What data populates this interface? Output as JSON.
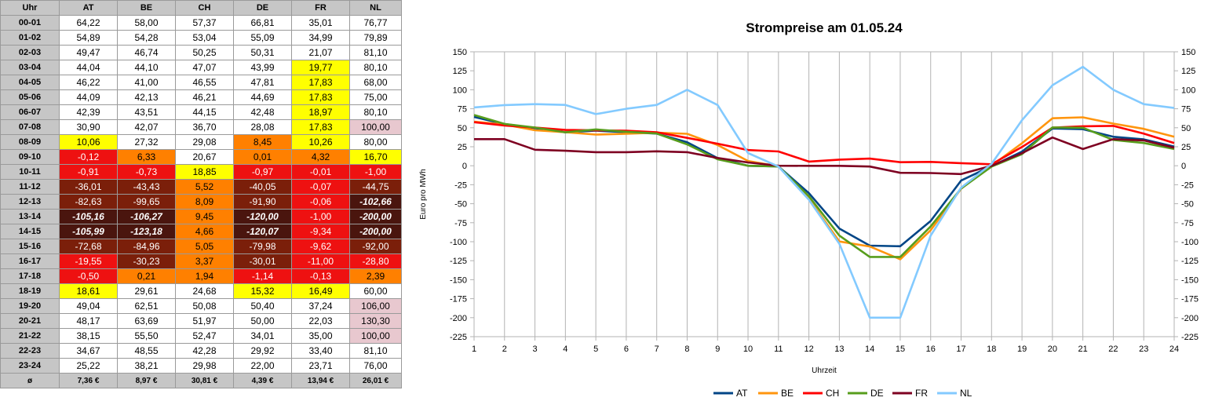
{
  "table": {
    "columns": [
      "Uhr",
      "AT",
      "BE",
      "CH",
      "DE",
      "FR",
      "NL"
    ],
    "rows": [
      {
        "hour": "00-01",
        "values": [
          "64,22",
          "58,00",
          "57,37",
          "66,81",
          "35,01",
          "76,77"
        ],
        "cls": [
          "",
          "",
          "",
          "",
          "",
          ""
        ]
      },
      {
        "hour": "01-02",
        "values": [
          "54,89",
          "54,28",
          "53,04",
          "55,09",
          "34,99",
          "79,89"
        ],
        "cls": [
          "",
          "",
          "",
          "",
          "",
          ""
        ]
      },
      {
        "hour": "02-03",
        "values": [
          "49,47",
          "46,74",
          "50,25",
          "50,31",
          "21,07",
          "81,10"
        ],
        "cls": [
          "",
          "",
          "",
          "",
          "",
          ""
        ]
      },
      {
        "hour": "03-04",
        "values": [
          "44,04",
          "44,10",
          "47,07",
          "43,99",
          "19,77",
          "80,10"
        ],
        "cls": [
          "",
          "",
          "",
          "",
          "y",
          ""
        ]
      },
      {
        "hour": "04-05",
        "values": [
          "46,22",
          "41,00",
          "46,55",
          "47,81",
          "17,83",
          "68,00"
        ],
        "cls": [
          "",
          "",
          "",
          "",
          "y",
          ""
        ]
      },
      {
        "hour": "05-06",
        "values": [
          "44,09",
          "42,13",
          "46,21",
          "44,69",
          "17,83",
          "75,00"
        ],
        "cls": [
          "",
          "",
          "",
          "",
          "y",
          ""
        ]
      },
      {
        "hour": "06-07",
        "values": [
          "42,39",
          "43,51",
          "44,15",
          "42,48",
          "18,97",
          "80,10"
        ],
        "cls": [
          "",
          "",
          "",
          "",
          "y",
          ""
        ]
      },
      {
        "hour": "07-08",
        "values": [
          "30,90",
          "42,07",
          "36,70",
          "28,08",
          "17,83",
          "100,00"
        ],
        "cls": [
          "",
          "",
          "",
          "",
          "y",
          "p"
        ]
      },
      {
        "hour": "08-09",
        "values": [
          "10,06",
          "27,32",
          "29,08",
          "8,45",
          "10,26",
          "80,00"
        ],
        "cls": [
          "y",
          "",
          "",
          "o",
          "y",
          ""
        ]
      },
      {
        "hour": "09-10",
        "values": [
          "-0,12",
          "6,33",
          "20,67",
          "0,01",
          "4,32",
          "16,70"
        ],
        "cls": [
          "r",
          "o",
          "",
          "o",
          "o",
          "y"
        ]
      },
      {
        "hour": "10-11",
        "values": [
          "-0,91",
          "-0,73",
          "18,85",
          "-0,97",
          "-0,01",
          "-1,00"
        ],
        "cls": [
          "r",
          "r",
          "y",
          "r",
          "r",
          "r"
        ]
      },
      {
        "hour": "11-12",
        "values": [
          "-36,01",
          "-43,43",
          "5,52",
          "-40,05",
          "-0,07",
          "-44,75"
        ],
        "cls": [
          "d",
          "d",
          "o",
          "d",
          "r",
          "d"
        ]
      },
      {
        "hour": "12-13",
        "values": [
          "-82,63",
          "-99,65",
          "8,09",
          "-91,90",
          "-0,06",
          "-102,66"
        ],
        "cls": [
          "d",
          "d",
          "o",
          "d",
          "r",
          "vd"
        ]
      },
      {
        "hour": "13-14",
        "values": [
          "-105,16",
          "-106,27",
          "9,45",
          "-120,00",
          "-1,00",
          "-200,00"
        ],
        "cls": [
          "vd",
          "vd",
          "o",
          "vd",
          "r",
          "vd"
        ]
      },
      {
        "hour": "14-15",
        "values": [
          "-105,99",
          "-123,18",
          "4,66",
          "-120,07",
          "-9,34",
          "-200,00"
        ],
        "cls": [
          "vd",
          "vd",
          "o",
          "vd",
          "r",
          "vd"
        ]
      },
      {
        "hour": "15-16",
        "values": [
          "-72,68",
          "-84,96",
          "5,05",
          "-79,98",
          "-9,62",
          "-92,00"
        ],
        "cls": [
          "d",
          "d",
          "o",
          "d",
          "r",
          "d"
        ]
      },
      {
        "hour": "16-17",
        "values": [
          "-19,55",
          "-30,23",
          "3,37",
          "-30,01",
          "-11,00",
          "-28,80"
        ],
        "cls": [
          "r",
          "d",
          "o",
          "d",
          "r",
          "r"
        ]
      },
      {
        "hour": "17-18",
        "values": [
          "-0,50",
          "0,21",
          "1,94",
          "-1,14",
          "-0,13",
          "2,39"
        ],
        "cls": [
          "r",
          "o",
          "o",
          "r",
          "r",
          "o"
        ]
      },
      {
        "hour": "18-19",
        "values": [
          "18,61",
          "29,61",
          "24,68",
          "15,32",
          "16,49",
          "60,00"
        ],
        "cls": [
          "y",
          "",
          "",
          "y",
          "y",
          ""
        ]
      },
      {
        "hour": "19-20",
        "values": [
          "49,04",
          "62,51",
          "50,08",
          "50,40",
          "37,24",
          "106,00"
        ],
        "cls": [
          "",
          "",
          "",
          "",
          "",
          "p"
        ]
      },
      {
        "hour": "20-21",
        "values": [
          "48,17",
          "63,69",
          "51,97",
          "50,00",
          "22,03",
          "130,30"
        ],
        "cls": [
          "",
          "",
          "",
          "",
          "",
          "p"
        ]
      },
      {
        "hour": "21-22",
        "values": [
          "38,15",
          "55,50",
          "52,47",
          "34,01",
          "35,00",
          "100,00"
        ],
        "cls": [
          "",
          "",
          "",
          "",
          "",
          "p"
        ]
      },
      {
        "hour": "22-23",
        "values": [
          "34,67",
          "48,55",
          "42,28",
          "29,92",
          "33,40",
          "81,10"
        ],
        "cls": [
          "",
          "",
          "",
          "",
          "",
          ""
        ]
      },
      {
        "hour": "23-24",
        "values": [
          "25,22",
          "38,21",
          "29,98",
          "22,00",
          "23,71",
          "76,00"
        ],
        "cls": [
          "",
          "",
          "",
          "",
          "",
          ""
        ]
      }
    ],
    "avg": {
      "label": "ø",
      "values": [
        "7,36 €",
        "8,97 €",
        "30,81 €",
        "4,39 €",
        "13,94 €",
        "26,01 €"
      ]
    }
  },
  "chart_data": {
    "type": "line",
    "title": "Strompreise am 01.05.24",
    "xlabel": "Uhrzeit",
    "ylabel": "Euro pro MWh",
    "ylim": [
      -225,
      150
    ],
    "ytick_step": 25,
    "x": [
      1,
      2,
      3,
      4,
      5,
      6,
      7,
      8,
      9,
      10,
      11,
      12,
      13,
      14,
      15,
      16,
      17,
      18,
      19,
      20,
      21,
      22,
      23,
      24
    ],
    "grid": "vertical",
    "legend": "bottom",
    "series": [
      {
        "name": "AT",
        "color": "#004586",
        "values": [
          64.22,
          54.89,
          49.47,
          44.04,
          46.22,
          44.09,
          42.39,
          30.9,
          10.06,
          -0.12,
          -0.91,
          -36.01,
          -82.63,
          -105.16,
          -105.99,
          -72.68,
          -19.55,
          -0.5,
          18.61,
          49.04,
          48.17,
          38.15,
          34.67,
          25.22
        ]
      },
      {
        "name": "BE",
        "color": "#ff950e",
        "values": [
          58.0,
          54.28,
          46.74,
          44.1,
          41.0,
          42.13,
          43.51,
          42.07,
          27.32,
          6.33,
          -0.73,
          -43.43,
          -99.65,
          -106.27,
          -123.18,
          -84.96,
          -30.23,
          0.21,
          29.61,
          62.51,
          63.69,
          55.5,
          48.55,
          38.21
        ]
      },
      {
        "name": "CH",
        "color": "#ff0000",
        "values": [
          57.37,
          53.04,
          50.25,
          47.07,
          46.55,
          46.21,
          44.15,
          36.7,
          29.08,
          20.67,
          18.85,
          5.52,
          8.09,
          9.45,
          4.66,
          5.05,
          3.37,
          1.94,
          24.68,
          50.08,
          51.97,
          52.47,
          42.28,
          29.98
        ]
      },
      {
        "name": "DE",
        "color": "#579d1c",
        "values": [
          66.81,
          55.09,
          50.31,
          43.99,
          47.81,
          44.69,
          42.48,
          28.08,
          8.45,
          0.01,
          -0.97,
          -40.05,
          -91.9,
          -120.0,
          -120.07,
          -79.98,
          -30.01,
          -1.14,
          15.32,
          50.4,
          50.0,
          34.01,
          29.92,
          22.0
        ]
      },
      {
        "name": "FR",
        "color": "#7e0021",
        "values": [
          35.01,
          34.99,
          21.07,
          19.77,
          17.83,
          17.83,
          18.97,
          17.83,
          10.26,
          4.32,
          -0.01,
          -0.07,
          -0.06,
          -1.0,
          -9.34,
          -9.62,
          -11.0,
          -0.13,
          16.49,
          37.24,
          22.03,
          35.0,
          33.4,
          23.71
        ]
      },
      {
        "name": "NL",
        "color": "#83caff",
        "values": [
          76.77,
          79.89,
          81.1,
          80.1,
          68.0,
          75.0,
          80.1,
          100.0,
          80.0,
          16.7,
          -1.0,
          -44.75,
          -102.66,
          -200.0,
          -200.0,
          -92.0,
          -28.8,
          2.39,
          60.0,
          106.0,
          130.3,
          100.0,
          81.1,
          76.0
        ]
      }
    ]
  }
}
